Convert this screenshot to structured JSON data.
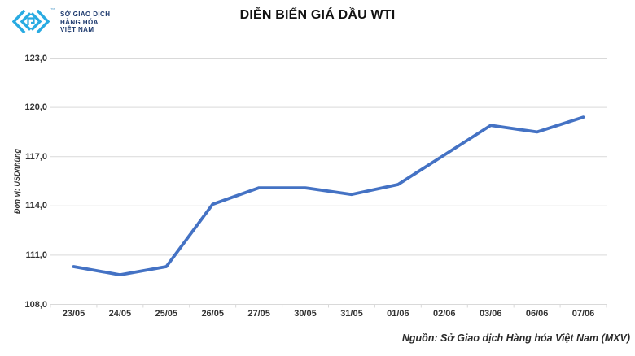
{
  "header": {
    "title": "DIỄN BIẾN GIÁ DẦU WTI",
    "logo": {
      "trademark": "™",
      "lines": [
        "SỞ GIAO DỊCH",
        "HÀNG HÓA",
        "VIỆT NAM"
      ]
    }
  },
  "footer": {
    "source": "Nguồn: Sở Giao dịch Hàng hóa Việt Nam (MXV)"
  },
  "colors": {
    "line": "#4472C4",
    "grid": "#D9D9D9",
    "logo_mark": "#29ABE2",
    "logo_text": "#1E3A6E",
    "axis_text": "#333333"
  },
  "chart_data": {
    "type": "line",
    "title": "DIỄN BIẾN GIÁ DẦU WTI",
    "xlabel": "",
    "ylabel": "Đơn vị: USD/thùng",
    "categories": [
      "23/05",
      "24/05",
      "25/05",
      "26/05",
      "27/05",
      "30/05",
      "31/05",
      "01/06",
      "02/06",
      "03/06",
      "06/06",
      "07/06"
    ],
    "values": [
      110.3,
      109.8,
      110.3,
      114.1,
      115.1,
      115.1,
      114.7,
      115.3,
      117.1,
      118.9,
      118.5,
      119.4
    ],
    "ylim": [
      108,
      123
    ],
    "yticks": {
      "values": [
        108,
        111,
        114,
        117,
        120,
        123
      ],
      "labels": [
        "108,0",
        "111,0",
        "114,0",
        "117,0",
        "120,0",
        "123,0"
      ]
    },
    "grid": true,
    "legend": "none",
    "source": "Nguồn: Sở Giao dịch Hàng hóa Việt Nam (MXV)"
  }
}
